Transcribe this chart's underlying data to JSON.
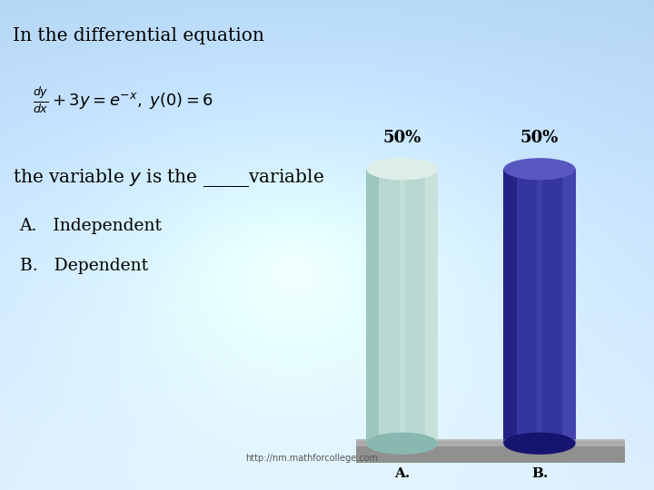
{
  "title_line1": "In the differential equation",
  "options": [
    "A.   Independent",
    "B.   Dependent"
  ],
  "categories": [
    "A.",
    "B."
  ],
  "values": [
    50,
    50
  ],
  "bar_A_main": "#b8d8d2",
  "bar_A_light": "#ddeee8",
  "bar_A_dark": "#88b8b0",
  "bar_B_main": "#3535a0",
  "bar_B_light": "#5858c0",
  "bar_B_dark": "#151570",
  "percentage_labels": [
    "50%",
    "50%"
  ],
  "url_text": "http://nm.mathforcollege.com",
  "bg_color_topleft": [
    176,
    210,
    240
  ],
  "bg_color_topright": [
    176,
    210,
    240
  ],
  "bg_color_bottomleft": [
    220,
    235,
    252
  ],
  "bg_color_bottomright": [
    220,
    235,
    252
  ],
  "platform_color": "#909090",
  "platform_top_color": "#b0b0b0"
}
